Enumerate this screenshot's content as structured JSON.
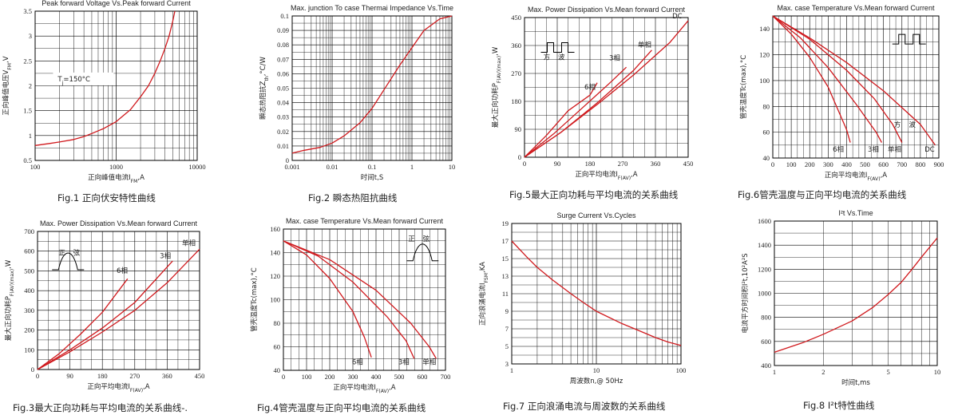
{
  "charts": [
    {
      "type": "line",
      "title": "Peak forward Voltage Vs.Peak forward Current",
      "xlabel": "正向峰值电流I_FM,A",
      "ylabel": "正向峰值电压V_FM,V",
      "xscale": "log",
      "xlim": [
        100,
        10000
      ],
      "xticks": [
        100,
        1000,
        10000
      ],
      "xtick_labels": [
        "100",
        "1000",
        "10000"
      ],
      "ylim": [
        0.5,
        3.5
      ],
      "yticks": [
        0.5,
        1,
        1.5,
        2,
        2.5,
        3,
        3.5
      ],
      "ytick_labels": [
        "0.5",
        "1",
        "1.5",
        "2",
        "2.5",
        "3",
        "3.5"
      ],
      "grid": true,
      "annotations": [
        {
          "text": "T_j=150°C"
        }
      ],
      "series": [
        {
          "color": "#d0191d",
          "x": [
            100,
            150,
            200,
            300,
            400,
            500,
            700,
            1000,
            1500,
            2000,
            2500,
            3000,
            3500,
            4000,
            4500,
            5000,
            5300
          ],
          "y": [
            0.8,
            0.84,
            0.87,
            0.92,
            0.98,
            1.04,
            1.14,
            1.28,
            1.52,
            1.78,
            2.0,
            2.25,
            2.5,
            2.75,
            3.0,
            3.3,
            3.5
          ]
        }
      ],
      "caption": "Fig.1 正向伏安特性曲线"
    },
    {
      "type": "line",
      "title": "Max. junction To case Thermai Impedance Vs.Time",
      "xlabel": "时间t,S",
      "ylabel": "瞬态热阻抗Z_th,°C/W",
      "xscale": "log",
      "xlim": [
        0.001,
        10
      ],
      "xticks": [
        0.001,
        0.01,
        0.1,
        1,
        10
      ],
      "xtick_labels": [
        "0.001",
        "0.01",
        "0.1",
        "1",
        "10"
      ],
      "ylim": [
        0,
        0.1
      ],
      "yticks": [
        0,
        0.01,
        0.02,
        0.03,
        0.04,
        0.05,
        0.06,
        0.07,
        0.08,
        0.09,
        0.1
      ],
      "ytick_labels": [
        "0",
        "0.01",
        "0.02",
        "0.03",
        "0.04",
        "0.05",
        "0.06",
        "0.07",
        "0.08",
        "0.09",
        "0.1"
      ],
      "grid": true,
      "annotations": [],
      "series": [
        {
          "color": "#d0191d",
          "x": [
            0.001,
            0.002,
            0.005,
            0.01,
            0.02,
            0.05,
            0.1,
            0.2,
            0.5,
            1,
            2,
            5,
            10
          ],
          "y": [
            0.005,
            0.007,
            0.009,
            0.012,
            0.017,
            0.026,
            0.036,
            0.049,
            0.066,
            0.078,
            0.09,
            0.098,
            0.1
          ]
        }
      ],
      "caption": "Fig.2 瞬态热阻抗曲线"
    },
    {
      "type": "line",
      "title": "Max. Power Dissipation Vs.Mean forward Current",
      "xlabel": "正向平均电流I_F(AV),A",
      "ylabel": "最大正向功耗P_F(AV)(max),W",
      "xlim": [
        0,
        450
      ],
      "xticks": [
        0,
        90,
        180,
        270,
        360,
        450
      ],
      "xtick_labels": [
        "0",
        "90",
        "180",
        "270",
        "360",
        "450"
      ],
      "ylim": [
        0,
        450
      ],
      "yticks": [
        0,
        90,
        180,
        270,
        360,
        450
      ],
      "ytick_labels": [
        "0",
        "90",
        "180",
        "270",
        "360",
        "450"
      ],
      "grid": true,
      "annotations": [
        {
          "text": "方"
        },
        {
          "text": "波"
        }
      ],
      "series": [
        {
          "name": "6相",
          "color": "#d0191d",
          "x": [
            0,
            60,
            120,
            180,
            200
          ],
          "y": [
            0,
            70,
            150,
            200,
            240
          ]
        },
        {
          "name": "3相",
          "color": "#d0191d",
          "x": [
            0,
            80,
            160,
            240,
            280
          ],
          "y": [
            0,
            75,
            160,
            245,
            290
          ]
        },
        {
          "name": "单相",
          "color": "#d0191d",
          "x": [
            0,
            100,
            200,
            300,
            350
          ],
          "y": [
            0,
            80,
            175,
            280,
            345
          ]
        },
        {
          "name": "DC",
          "color": "#d0191d",
          "x": [
            0,
            100,
            200,
            300,
            400,
            450
          ],
          "y": [
            0,
            80,
            170,
            265,
            370,
            440
          ]
        }
      ],
      "caption": "Fig.5最大正向功耗与平均电流的关系曲线"
    },
    {
      "type": "line",
      "title": "Max. case Temperature Vs.Mean forward Current",
      "xlabel": "正向平均电流I_F(AV),A",
      "ylabel": "管壳温度Tc(max),°C",
      "xlim": [
        0,
        900
      ],
      "xticks": [
        0,
        100,
        200,
        300,
        400,
        500,
        600,
        700,
        800,
        900
      ],
      "xtick_labels": [
        "0",
        "100",
        "200",
        "300",
        "400",
        "500",
        "600",
        "700",
        "800",
        "900"
      ],
      "ylim": [
        40,
        150
      ],
      "yticks": [
        40,
        60,
        80,
        100,
        120,
        140
      ],
      "ytick_labels": [
        "40",
        "60",
        "80",
        "100",
        "120",
        "140"
      ],
      "grid": true,
      "annotations": [
        {
          "text": "方"
        },
        {
          "text": "波"
        }
      ],
      "series": [
        {
          "name": "6相",
          "color": "#d0191d",
          "x": [
            0,
            100,
            200,
            300,
            400,
            420
          ],
          "y": [
            150,
            136,
            118,
            95,
            62,
            52
          ]
        },
        {
          "name": "3相",
          "color": "#d0191d",
          "x": [
            0,
            150,
            300,
            450,
            560,
            590
          ],
          "y": [
            150,
            133,
            110,
            82,
            60,
            52
          ]
        },
        {
          "name": "单相",
          "color": "#d0191d",
          "x": [
            0,
            200,
            400,
            550,
            650,
            700
          ],
          "y": [
            150,
            132,
            108,
            86,
            66,
            52
          ]
        },
        {
          "name": "DC",
          "color": "#d0191d",
          "x": [
            0,
            200,
            400,
            600,
            800,
            880
          ],
          "y": [
            150,
            133,
            114,
            92,
            66,
            50
          ]
        }
      ],
      "caption": "Fig.6管壳温度与正向平均电流的关系曲线"
    },
    {
      "type": "line",
      "title": "Max. Power Dissipation Vs.Mean forward Current",
      "xlabel": "正向平均电流I_F(AV),A",
      "ylabel": "最大正向功耗P_F(AV)(max),W",
      "xlim": [
        0,
        450
      ],
      "xticks": [
        0,
        90,
        180,
        270,
        360,
        450
      ],
      "xtick_labels": [
        "0",
        "90",
        "180",
        "270",
        "360",
        "450"
      ],
      "ylim": [
        0,
        700
      ],
      "yticks": [
        0,
        100,
        200,
        300,
        400,
        500,
        600,
        700
      ],
      "ytick_labels": [
        "0",
        "100",
        "200",
        "300",
        "400",
        "500",
        "600",
        "700"
      ],
      "grid": true,
      "annotations": [
        {
          "text": "正"
        },
        {
          "text": "弦"
        }
      ],
      "series": [
        {
          "name": "6相",
          "color": "#d0191d",
          "x": [
            0,
            60,
            120,
            180,
            250
          ],
          "y": [
            0,
            80,
            180,
            290,
            460
          ]
        },
        {
          "name": "3相",
          "color": "#d0191d",
          "x": [
            0,
            90,
            180,
            270,
            375
          ],
          "y": [
            0,
            100,
            210,
            340,
            550
          ]
        },
        {
          "name": "单相",
          "color": "#d0191d",
          "x": [
            0,
            90,
            180,
            270,
            360,
            450
          ],
          "y": [
            0,
            90,
            190,
            300,
            440,
            610
          ]
        }
      ],
      "caption": "Fig.3最大正向功耗与平均电流的关系曲线-."
    },
    {
      "type": "line",
      "title": "Max. case Temperature Vs.Mean forward Current",
      "xlabel": "正向平均电流I_F(AV),A",
      "ylabel": "管壳温度Tc(max),°C",
      "xlim": [
        0,
        700
      ],
      "xticks": [
        0,
        100,
        200,
        300,
        400,
        500,
        600,
        700
      ],
      "xtick_labels": [
        "0",
        "100",
        "200",
        "300",
        "400",
        "500",
        "600",
        "700"
      ],
      "ylim": [
        40,
        160
      ],
      "yticks": [
        40,
        60,
        80,
        100,
        120,
        140,
        160
      ],
      "ytick_labels": [
        "40",
        "60",
        "80",
        "100",
        "120",
        "140",
        "160"
      ],
      "grid": true,
      "annotations": [
        {
          "text": "正"
        },
        {
          "text": "弦"
        }
      ],
      "series": [
        {
          "name": "6相",
          "color": "#d0191d",
          "x": [
            0,
            100,
            200,
            300,
            350,
            380
          ],
          "y": [
            150,
            138,
            118,
            90,
            68,
            51
          ]
        },
        {
          "name": "3相",
          "color": "#d0191d",
          "x": [
            0,
            150,
            300,
            450,
            530,
            565
          ],
          "y": [
            150,
            137,
            115,
            85,
            65,
            50
          ]
        },
        {
          "name": "单相",
          "color": "#d0191d",
          "x": [
            0,
            200,
            400,
            550,
            630,
            660
          ],
          "y": [
            150,
            134,
            108,
            80,
            60,
            50
          ]
        }
      ],
      "caption": "Fig.4管壳温度与正向平均电流的关系曲线"
    },
    {
      "type": "line",
      "title": "Surge Current Vs.Cycles",
      "xlabel": "周波数n,@ 50Hz",
      "ylabel": "正向浪涌电流I_FSM,KA",
      "xscale": "log",
      "xlim": [
        1,
        100
      ],
      "xticks": [
        1,
        10,
        100
      ],
      "xtick_labels": [
        "1",
        "10",
        "100"
      ],
      "ylim": [
        3,
        19
      ],
      "yticks": [
        3,
        5,
        7,
        9,
        11,
        13,
        15,
        17,
        19
      ],
      "ytick_labels": [
        "3",
        "5",
        "7",
        "9",
        "11",
        "13",
        "15",
        "17",
        "19"
      ],
      "grid": true,
      "annotations": [],
      "series": [
        {
          "color": "#d0191d",
          "x": [
            1,
            1.5,
            2,
            3,
            5,
            7,
            10,
            20,
            30,
            50,
            70,
            100
          ],
          "y": [
            17,
            15.2,
            14,
            12.6,
            11,
            10,
            9,
            7.6,
            6.9,
            6,
            5.5,
            5.1
          ]
        }
      ],
      "caption": "Fig.7 正向浪涌电流与周波数的关系曲线"
    },
    {
      "type": "line",
      "title": "I²t Vs.Time",
      "xlabel": "时间t,ms",
      "ylabel": "电流平方时间积I²t,10²A²S",
      "xscale": "log",
      "xlim": [
        1,
        10
      ],
      "xticks": [
        1,
        2,
        5,
        10
      ],
      "xtick_labels": [
        "1",
        "2",
        "5",
        "10"
      ],
      "ylim": [
        400,
        1600
      ],
      "yticks": [
        400,
        600,
        800,
        1000,
        1200,
        1400,
        1600
      ],
      "ytick_labels": [
        "400",
        "600",
        "800",
        "1000",
        "1200",
        "1400",
        "1600"
      ],
      "grid": true,
      "annotations": [],
      "series": [
        {
          "color": "#d0191d",
          "x": [
            1,
            1.5,
            2,
            3,
            4,
            5,
            6,
            7,
            8,
            10
          ],
          "y": [
            510,
            590,
            660,
            770,
            880,
            990,
            1090,
            1200,
            1300,
            1460
          ]
        }
      ],
      "caption": "Fig.8 I²t特性曲线"
    }
  ]
}
